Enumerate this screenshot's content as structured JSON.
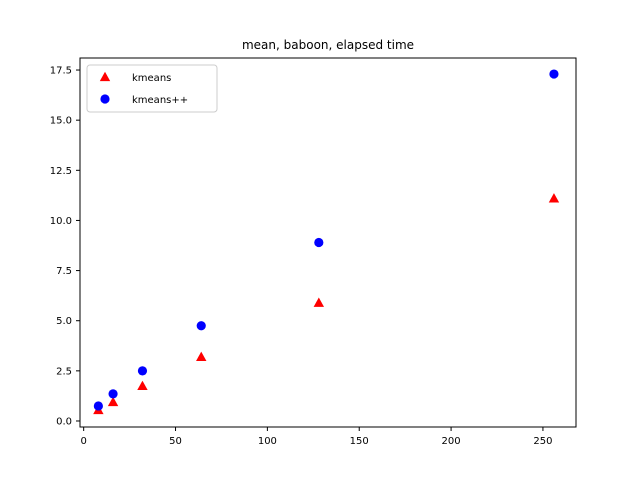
{
  "chart_data": {
    "type": "scatter",
    "title": "mean, baboon, elapsed time",
    "xlabel": "",
    "ylabel": "",
    "xlim": [
      -2,
      268
    ],
    "ylim": [
      -0.3,
      18.1
    ],
    "xticks": [
      0,
      50,
      100,
      150,
      200,
      250
    ],
    "yticks": [
      0.0,
      2.5,
      5.0,
      7.5,
      10.0,
      12.5,
      15.0,
      17.5
    ],
    "xtick_labels": [
      "0",
      "50",
      "100",
      "150",
      "200",
      "250"
    ],
    "ytick_labels": [
      "0.0",
      "2.5",
      "5.0",
      "7.5",
      "10.0",
      "12.5",
      "15.0",
      "17.5"
    ],
    "grid": false,
    "legend_position": "upper-left",
    "series": [
      {
        "name": "kmeans",
        "marker": "triangle",
        "color": "#ff0000",
        "x": [
          8,
          16,
          32,
          64,
          128,
          256
        ],
        "y": [
          0.55,
          0.95,
          1.75,
          3.2,
          5.9,
          11.1
        ]
      },
      {
        "name": "kmeans++",
        "marker": "circle",
        "color": "#0000ff",
        "x": [
          8,
          16,
          32,
          64,
          128,
          256
        ],
        "y": [
          0.75,
          1.35,
          2.5,
          4.75,
          8.9,
          17.3
        ]
      }
    ]
  }
}
